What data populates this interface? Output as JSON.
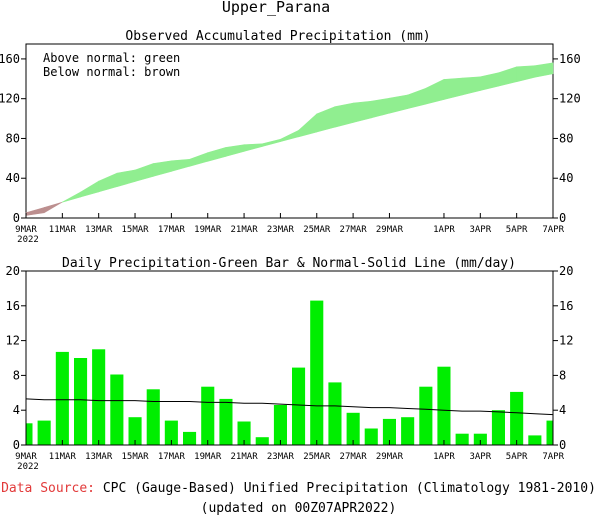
{
  "title": "Upper_Parana",
  "chart_data": [
    {
      "type": "area",
      "title": "Observed Accumulated Precipitation (mm)",
      "legend_lines": [
        "Above normal: green",
        "Below normal: brown"
      ],
      "legend_position": "top-left",
      "above_color": "#90ee90",
      "below_color": "#bc8f8f",
      "ylim": [
        0,
        175
      ],
      "yticks": [
        0,
        40,
        80,
        120,
        160
      ],
      "dates": [
        "2022-03-09",
        "2022-03-10",
        "2022-03-11",
        "2022-03-12",
        "2022-03-13",
        "2022-03-14",
        "2022-03-15",
        "2022-03-16",
        "2022-03-17",
        "2022-03-18",
        "2022-03-19",
        "2022-03-20",
        "2022-03-21",
        "2022-03-22",
        "2022-03-23",
        "2022-03-24",
        "2022-03-25",
        "2022-03-26",
        "2022-03-27",
        "2022-03-28",
        "2022-03-29",
        "2022-03-30",
        "2022-03-31",
        "2022-04-01",
        "2022-04-02",
        "2022-04-03",
        "2022-04-04",
        "2022-04-05",
        "2022-04-06",
        "2022-04-07"
      ],
      "observed": [
        2.5,
        5.3,
        16.0,
        26.0,
        37.0,
        45.1,
        48.3,
        54.7,
        57.5,
        59.0,
        65.7,
        71.0,
        73.7,
        74.6,
        79.2,
        88.1,
        104.7,
        111.9,
        115.6,
        117.5,
        120.5,
        123.7,
        130.4,
        139.4,
        140.7,
        142.0,
        146.0,
        152.1,
        153.2,
        156.0
      ],
      "normal": [
        5.3,
        10.6,
        15.9,
        21.1,
        26.3,
        31.5,
        36.7,
        41.8,
        46.9,
        52.0,
        57.0,
        62.0,
        67.0,
        71.9,
        76.8,
        81.7,
        86.5,
        91.3,
        96.0,
        100.7,
        105.4,
        110.0,
        114.6,
        119.2,
        123.7,
        128.2,
        132.7,
        137.1,
        141.5,
        145.0
      ]
    },
    {
      "type": "bar",
      "title": "Daily Precipitation-Green Bar & Normal-Solid Line (mm/day)",
      "bar_color": "#00ee00",
      "line_color": "#000000",
      "ylim": [
        0,
        20
      ],
      "yticks": [
        0,
        4,
        8,
        12,
        16,
        20
      ],
      "dates": [
        "2022-03-09",
        "2022-03-10",
        "2022-03-11",
        "2022-03-12",
        "2022-03-13",
        "2022-03-14",
        "2022-03-15",
        "2022-03-16",
        "2022-03-17",
        "2022-03-18",
        "2022-03-19",
        "2022-03-20",
        "2022-03-21",
        "2022-03-22",
        "2022-03-23",
        "2022-03-24",
        "2022-03-25",
        "2022-03-26",
        "2022-03-27",
        "2022-03-28",
        "2022-03-29",
        "2022-03-30",
        "2022-03-31",
        "2022-04-01",
        "2022-04-02",
        "2022-04-03",
        "2022-04-04",
        "2022-04-05",
        "2022-04-06",
        "2022-04-07"
      ],
      "daily": [
        2.5,
        2.8,
        10.7,
        10.0,
        11.0,
        8.1,
        3.2,
        6.4,
        2.8,
        1.5,
        6.7,
        5.3,
        2.7,
        0.9,
        4.6,
        8.9,
        16.6,
        7.2,
        3.7,
        1.9,
        3.0,
        3.2,
        6.7,
        9.0,
        1.3,
        1.3,
        4.0,
        6.1,
        1.1,
        2.8
      ],
      "normal": [
        5.3,
        5.2,
        5.2,
        5.2,
        5.1,
        5.1,
        5.1,
        5.0,
        5.0,
        5.0,
        4.9,
        4.9,
        4.8,
        4.8,
        4.7,
        4.6,
        4.5,
        4.5,
        4.4,
        4.3,
        4.3,
        4.2,
        4.1,
        4.0,
        3.9,
        3.9,
        3.8,
        3.7,
        3.6,
        3.5
      ]
    }
  ],
  "x_axis": {
    "ticks": [
      "9MAR",
      "11MAR",
      "13MAR",
      "15MAR",
      "17MAR",
      "19MAR",
      "21MAR",
      "23MAR",
      "25MAR",
      "27MAR",
      "29MAR",
      "1APR",
      "3APR",
      "5APR",
      "7APR"
    ],
    "tick_dates": [
      "2022-03-09",
      "2022-03-11",
      "2022-03-13",
      "2022-03-15",
      "2022-03-17",
      "2022-03-19",
      "2022-03-21",
      "2022-03-23",
      "2022-03-25",
      "2022-03-27",
      "2022-03-29",
      "2022-04-01",
      "2022-04-03",
      "2022-04-05",
      "2022-04-07"
    ],
    "year_label": "2022"
  },
  "footer": {
    "source_label": "Data Source:",
    "source_text": "CPC (Gauge-Based) Unified Precipitation (Climatology 1981-2010)",
    "updated": "(updated on 00Z07APR2022)"
  }
}
